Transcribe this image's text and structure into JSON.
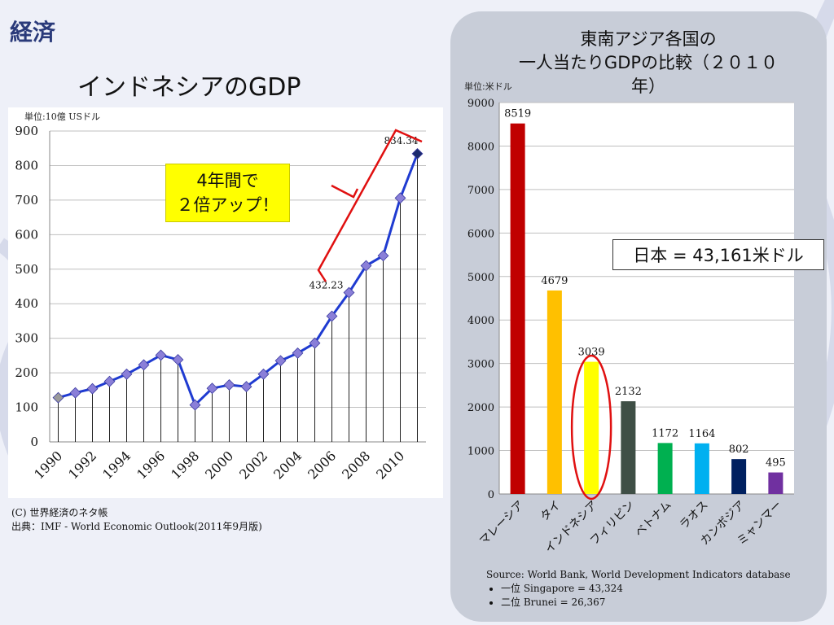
{
  "header": {
    "title": "経済"
  },
  "left_title": "インドネシアのGDP",
  "left_unit": "単位:10億 USドル",
  "callout": {
    "line1": "4年間で",
    "line2": "２倍アップ！"
  },
  "source_left": {
    "line1": "(C) 世界経済のネタ帳",
    "line2": "出典：IMF - World Economic Outlook(2011年9月版)"
  },
  "right_title": {
    "line1": "東南アジア各国の",
    "line2": "一人当たりGDPの比較（２０１０",
    "line3": "年）"
  },
  "right_unit": "単位:米ドル",
  "japan_note": "日本 = 43,161米ドル",
  "source_right": {
    "line1": "Source: World Bank, World Development Indicators database",
    "bullets": [
      "一位 Singapore = 43,324",
      "二位 Brunei = 26,367"
    ]
  },
  "chart_data": [
    {
      "type": "line",
      "x": [
        1990,
        1991,
        1992,
        1993,
        1994,
        1995,
        1996,
        1997,
        1998,
        1999,
        2000,
        2001,
        2002,
        2003,
        2004,
        2005,
        2006,
        2007,
        2008,
        2009,
        2010,
        2011
      ],
      "y": [
        128,
        142,
        154,
        175,
        196,
        223,
        251,
        238,
        107,
        155,
        165,
        160,
        196,
        235,
        257,
        286,
        364,
        432.23,
        510,
        539,
        706,
        834.34
      ],
      "xticks": [
        "1990",
        "1992",
        "1994",
        "1996",
        "1998",
        "2000",
        "2002",
        "2004",
        "2006",
        "2008",
        "2010"
      ],
      "yticks": [
        0,
        100,
        200,
        300,
        400,
        500,
        600,
        700,
        800,
        900
      ],
      "ylim": [
        0,
        900
      ],
      "annotations": [
        {
          "index": 17,
          "label": "432.23"
        },
        {
          "index": 21,
          "label": "834.34"
        }
      ],
      "line_color": "#1f3bd1",
      "marker_color": "#8a7fd8"
    },
    {
      "type": "bar",
      "categories": [
        "マレーシア",
        "タイ",
        "インドネシア",
        "フィリピン",
        "ベトナム",
        "ラオス",
        "カンボジア",
        "ミャンマー"
      ],
      "values": [
        8519,
        4679,
        3039,
        2132,
        1172,
        1164,
        802,
        495
      ],
      "colors": [
        "#c00000",
        "#ffc000",
        "#ffff00",
        "#3f4f46",
        "#00b050",
        "#00b0f0",
        "#002060",
        "#7030a0"
      ],
      "yticks": [
        0,
        1000,
        2000,
        3000,
        4000,
        5000,
        6000,
        7000,
        8000,
        9000
      ],
      "ylim": [
        0,
        9000
      ],
      "highlight_index": 2
    }
  ]
}
